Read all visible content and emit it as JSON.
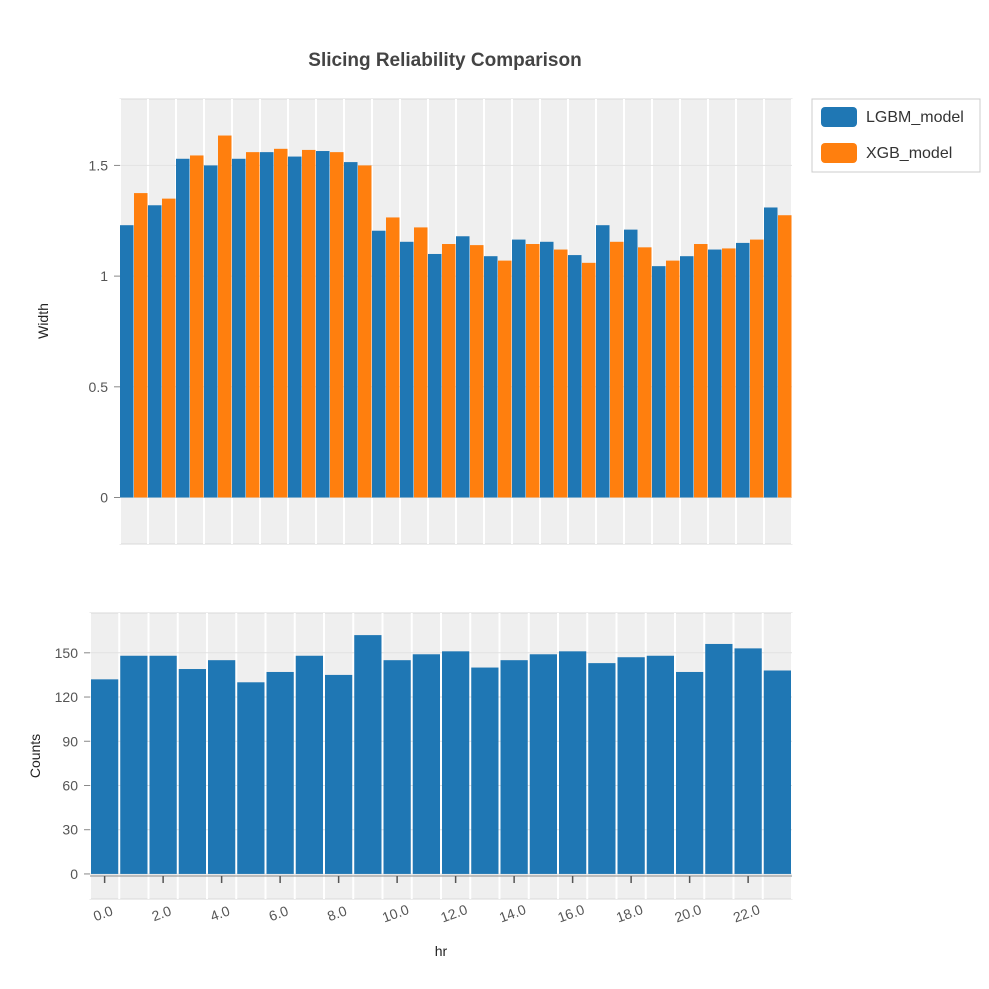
{
  "chart_data": {
    "type": "bar",
    "title": "Slicing Reliability Comparison",
    "colors": {
      "LGBM_model": "#1f77b4",
      "XGB_model": "#ff7f0e",
      "background": "#efefef",
      "grid": "#ffffff"
    },
    "top": {
      "ylabel": "Width",
      "ylim": [
        -0.21,
        1.8
      ],
      "yticks": [
        0,
        0.5,
        1,
        1.5
      ],
      "ytick_labels": [
        "0",
        "0.5",
        "1",
        "1.5"
      ],
      "legend": [
        "LGBM_model",
        "XGB_model"
      ],
      "legend_position": "right",
      "series": [
        {
          "name": "LGBM_model",
          "values": [
            1.23,
            1.32,
            1.53,
            1.5,
            1.53,
            1.56,
            1.54,
            1.565,
            1.515,
            1.205,
            1.155,
            1.1,
            1.18,
            1.09,
            1.165,
            1.155,
            1.095,
            1.23,
            1.21,
            1.045,
            1.09,
            1.12,
            1.15,
            1.31
          ]
        },
        {
          "name": "XGB_model",
          "values": [
            1.375,
            1.35,
            1.545,
            1.635,
            1.56,
            1.575,
            1.57,
            1.56,
            1.5,
            1.265,
            1.22,
            1.145,
            1.14,
            1.07,
            1.145,
            1.12,
            1.06,
            1.155,
            1.13,
            1.07,
            1.145,
            1.125,
            1.165,
            1.275
          ]
        }
      ]
    },
    "bottom": {
      "ylabel": "Counts",
      "xlabel": "hr",
      "ylim": [
        -17,
        177
      ],
      "yticks": [
        0,
        30,
        60,
        90,
        120,
        150
      ],
      "ytick_labels": [
        "0",
        "30",
        "60",
        "90",
        "120",
        "150"
      ],
      "x": [
        0,
        1,
        2,
        3,
        4,
        5,
        6,
        7,
        8,
        9,
        10,
        11,
        12,
        13,
        14,
        15,
        16,
        17,
        18,
        19,
        20,
        21,
        22,
        23
      ],
      "xtick_values": [
        0,
        2,
        4,
        6,
        8,
        10,
        12,
        14,
        16,
        18,
        20,
        22
      ],
      "xtick_labels": [
        "0.0",
        "2.0",
        "4.0",
        "6.0",
        "8.0",
        "10.0",
        "12.0",
        "14.0",
        "16.0",
        "18.0",
        "20.0",
        "22.0"
      ],
      "values": [
        132,
        148,
        148,
        139,
        145,
        130,
        137,
        148,
        135,
        162,
        145,
        149,
        151,
        140,
        145,
        149,
        151,
        143,
        147,
        148,
        137,
        156,
        153,
        138
      ]
    }
  }
}
